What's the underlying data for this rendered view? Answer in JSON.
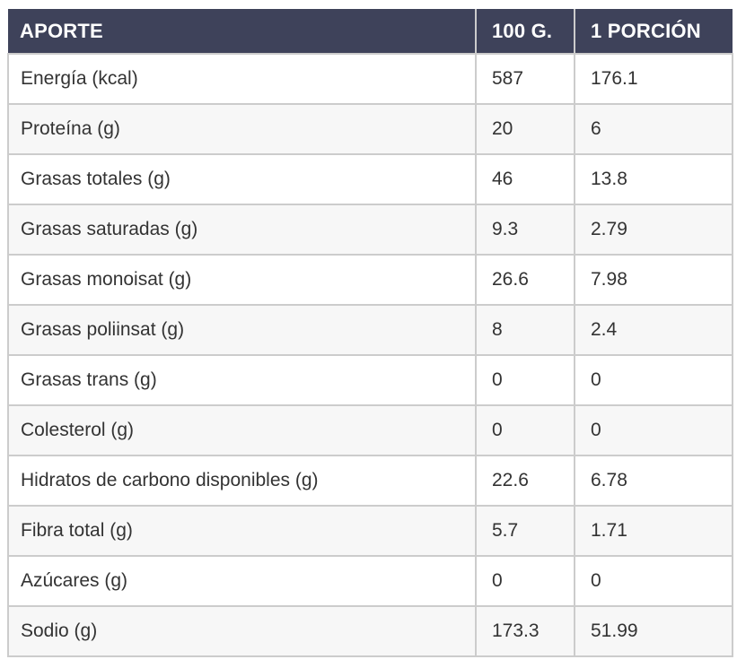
{
  "table": {
    "columns": [
      {
        "label": "APORTE"
      },
      {
        "label": "100 G."
      },
      {
        "label": "1 PORCIÓN"
      }
    ],
    "rows": [
      {
        "label": "Energía (kcal)",
        "per100": "587",
        "portion": "176.1"
      },
      {
        "label": "Proteína (g)",
        "per100": "20",
        "portion": "6"
      },
      {
        "label": "Grasas totales (g)",
        "per100": "46",
        "portion": "13.8"
      },
      {
        "label": "Grasas saturadas (g)",
        "per100": "9.3",
        "portion": "2.79"
      },
      {
        "label": "Grasas monoisat (g)",
        "per100": "26.6",
        "portion": "7.98"
      },
      {
        "label": "Grasas poliinsat (g)",
        "per100": "8",
        "portion": "2.4"
      },
      {
        "label": "Grasas trans (g)",
        "per100": "0",
        "portion": "0"
      },
      {
        "label": "Colesterol (g)",
        "per100": "0",
        "portion": "0"
      },
      {
        "label": "Hidratos de carbono disponibles (g)",
        "per100": "22.6",
        "portion": "6.78"
      },
      {
        "label": "Fibra total (g)",
        "per100": "5.7",
        "portion": "1.71"
      },
      {
        "label": "Azúcares (g)",
        "per100": "0",
        "portion": "0"
      },
      {
        "label": "Sodio (g)",
        "per100": "173.3",
        "portion": "51.99"
      }
    ]
  },
  "theme": {
    "header_bg": "#3e425a",
    "header_text": "#ffffff",
    "border": "#cccccc",
    "stripe": "#f7f7f7",
    "text": "#333333",
    "bg": "#ffffff"
  }
}
